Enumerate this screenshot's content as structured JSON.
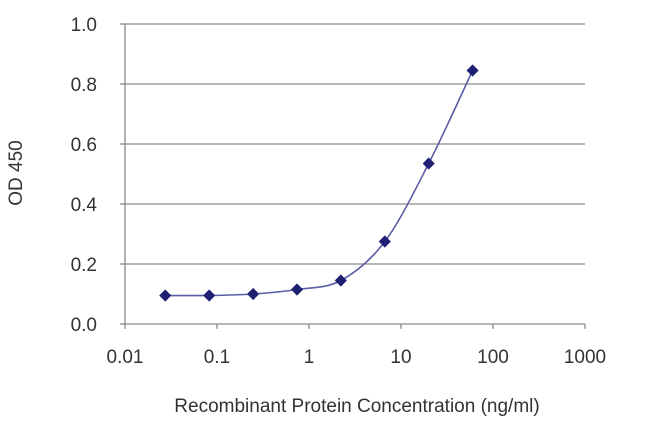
{
  "chart_data": {
    "type": "line",
    "title": "",
    "xlabel": "Recombinant Protein Concentration (ng/ml)",
    "ylabel": "OD 450",
    "xscale": "log",
    "xlim": [
      0.01,
      1000
    ],
    "ylim": [
      0.0,
      1.0
    ],
    "x_ticks": [
      0.01,
      0.1,
      1,
      10,
      100,
      1000
    ],
    "x_tick_labels": [
      "0.01",
      "0.1",
      "1",
      "10",
      "100",
      "1000"
    ],
    "y_ticks": [
      0.0,
      0.2,
      0.4,
      0.6,
      0.8,
      1.0
    ],
    "y_tick_labels": [
      "0.0",
      "0.2",
      "0.4",
      "0.6",
      "0.8",
      "1.0"
    ],
    "grid": "horizontal",
    "legend": "none",
    "series": [
      {
        "x": [
          0.0274,
          0.0823,
          0.247,
          0.741,
          2.22,
          6.67,
          20,
          60
        ],
        "y": [
          0.095,
          0.095,
          0.1,
          0.115,
          0.145,
          0.275,
          0.535,
          0.845
        ],
        "color": "#2a2a7a",
        "marker": "diamond"
      }
    ]
  },
  "colors": {
    "line": "#5b5ea6",
    "marker": "#1f1f73",
    "grid": "#8a8a8a",
    "axis": "#8a8a8a"
  }
}
